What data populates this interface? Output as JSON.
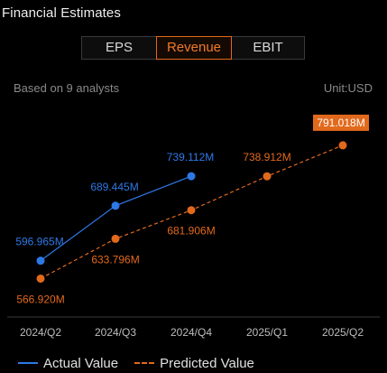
{
  "header": {
    "title": "Financial Estimates"
  },
  "tabs": [
    {
      "label": "EPS",
      "active": false
    },
    {
      "label": "Revenue",
      "active": true
    },
    {
      "label": "EBIT",
      "active": false
    }
  ],
  "subheader": {
    "analysts": "Based on 9 analysts",
    "unit": "Unit:USD"
  },
  "legend": {
    "actual": "Actual Value",
    "predicted": "Predicted Value"
  },
  "colors": {
    "actual": "#2e78e6",
    "predicted": "#e2691c",
    "highlight_bg": "#e2691c"
  },
  "chart_data": {
    "type": "line",
    "categories": [
      "2024/Q2",
      "2024/Q3",
      "2024/Q4",
      "2025/Q1",
      "2025/Q2"
    ],
    "ylim": [
      560,
      800
    ],
    "series": [
      {
        "name": "Actual Value",
        "style": "solid",
        "values": [
          596.965,
          689.445,
          739.112,
          null,
          null
        ],
        "labels": [
          "596.965M",
          "689.445M",
          "739.112M",
          null,
          null
        ]
      },
      {
        "name": "Predicted Value",
        "style": "dashed",
        "values": [
          566.92,
          633.796,
          681.906,
          738.912,
          791.018
        ],
        "labels": [
          "566.920M",
          "633.796M",
          "681.906M",
          "738.912M",
          "791.018M"
        ]
      }
    ],
    "highlighted_label": "791.018M"
  }
}
